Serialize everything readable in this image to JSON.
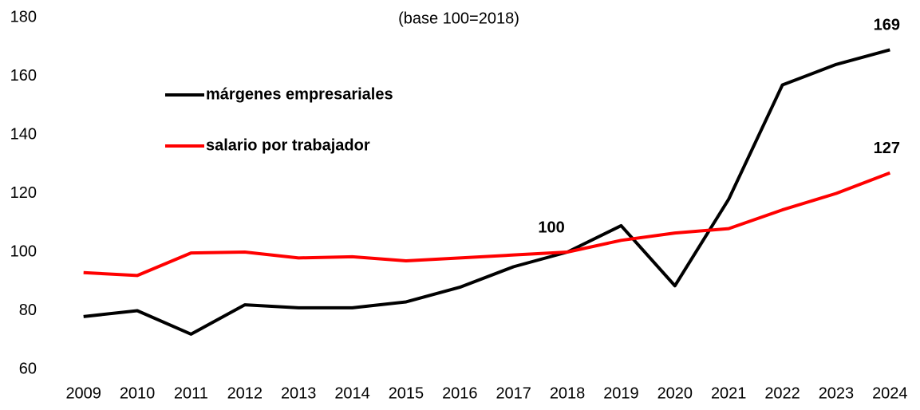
{
  "chart_data": {
    "type": "line",
    "subtitle": "(base 100=2018)",
    "categories": [
      "2009",
      "2010",
      "2011",
      "2012",
      "2013",
      "2014",
      "2015",
      "2016",
      "2017",
      "2018",
      "2019",
      "2020",
      "2021",
      "2022",
      "2023",
      "2024"
    ],
    "series": [
      {
        "name": "márgenes empresariales",
        "color": "#000000",
        "values": [
          78,
          80,
          72,
          82,
          81,
          81,
          83,
          88,
          95,
          100,
          109,
          88.5,
          118,
          157,
          164,
          169
        ],
        "value_labels": [
          null,
          null,
          null,
          null,
          null,
          null,
          null,
          null,
          null,
          "100",
          null,
          null,
          null,
          null,
          null,
          "169"
        ]
      },
      {
        "name": "salario por trabajador",
        "color": "#ff0000",
        "values": [
          93,
          92,
          99.7,
          100,
          98,
          98.4,
          97,
          98,
          99,
          100,
          104,
          106.5,
          108,
          114.4,
          120,
          127
        ],
        "value_labels": [
          null,
          null,
          null,
          null,
          null,
          null,
          null,
          null,
          null,
          null,
          null,
          null,
          null,
          null,
          null,
          "127"
        ]
      }
    ],
    "ylim": [
      60,
      180
    ],
    "yticks": [
      60,
      80,
      100,
      120,
      140,
      160,
      180
    ],
    "grid": false,
    "legend": "upper left"
  }
}
